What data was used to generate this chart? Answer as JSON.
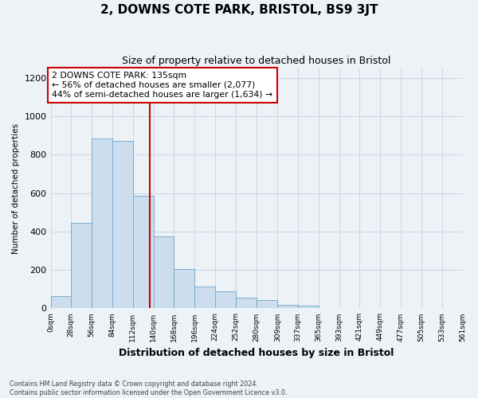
{
  "title": "2, DOWNS COTE PARK, BRISTOL, BS9 3JT",
  "subtitle": "Size of property relative to detached houses in Bristol",
  "xlabel": "Distribution of detached houses by size in Bristol",
  "ylabel": "Number of detached properties",
  "bar_color": "#ccdded",
  "bar_edge_color": "#7aaccc",
  "bin_labels": [
    "0sqm",
    "28sqm",
    "56sqm",
    "84sqm",
    "112sqm",
    "140sqm",
    "168sqm",
    "196sqm",
    "224sqm",
    "252sqm",
    "280sqm",
    "309sqm",
    "337sqm",
    "365sqm",
    "393sqm",
    "421sqm",
    "449sqm",
    "477sqm",
    "505sqm",
    "533sqm",
    "561sqm"
  ],
  "bar_heights": [
    65,
    445,
    885,
    870,
    585,
    375,
    205,
    115,
    90,
    57,
    42,
    20,
    15,
    0,
    0,
    0,
    0,
    0,
    0,
    0
  ],
  "bin_edges": [
    0,
    28,
    56,
    84,
    112,
    140,
    168,
    196,
    224,
    252,
    280,
    309,
    337,
    365,
    393,
    421,
    449,
    477,
    505,
    533,
    561
  ],
  "vline_x": 135,
  "vline_color": "#cc0000",
  "annotation_title": "2 DOWNS COTE PARK: 135sqm",
  "annotation_line1": "← 56% of detached houses are smaller (2,077)",
  "annotation_line2": "44% of semi-detached houses are larger (1,634) →",
  "annotation_box_color": "#ffffff",
  "annotation_box_edge_color": "#cc0000",
  "ylim": [
    0,
    1250
  ],
  "yticks": [
    0,
    200,
    400,
    600,
    800,
    1000,
    1200
  ],
  "grid_color": "#d0d8e8",
  "background_color": "#edf2f7",
  "footer_line1": "Contains HM Land Registry data © Crown copyright and database right 2024.",
  "footer_line2": "Contains public sector information licensed under the Open Government Licence v3.0."
}
